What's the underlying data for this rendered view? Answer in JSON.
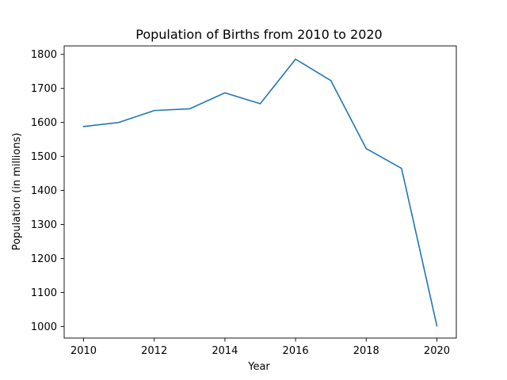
{
  "chart_data": {
    "type": "line",
    "title": "Population of Births from 2010 to 2020",
    "xlabel": "Year",
    "ylabel": "Population (in millions)",
    "xlim": [
      2009.45,
      2020.55
    ],
    "ylim": [
      966,
      1825
    ],
    "xticks": [
      2010,
      2012,
      2014,
      2016,
      2018,
      2020
    ],
    "yticks": [
      1000,
      1100,
      1200,
      1300,
      1400,
      1500,
      1600,
      1700,
      1800
    ],
    "grid": false,
    "line_color": "#1f77b4",
    "series": [
      {
        "x": [
          2010,
          2011,
          2012,
          2013,
          2014,
          2015,
          2016,
          2017,
          2018,
          2019,
          2020
        ],
        "values": [
          1588,
          1600,
          1635,
          1640,
          1687,
          1655,
          1786,
          1723,
          1523,
          1465,
          1002
        ]
      }
    ]
  }
}
